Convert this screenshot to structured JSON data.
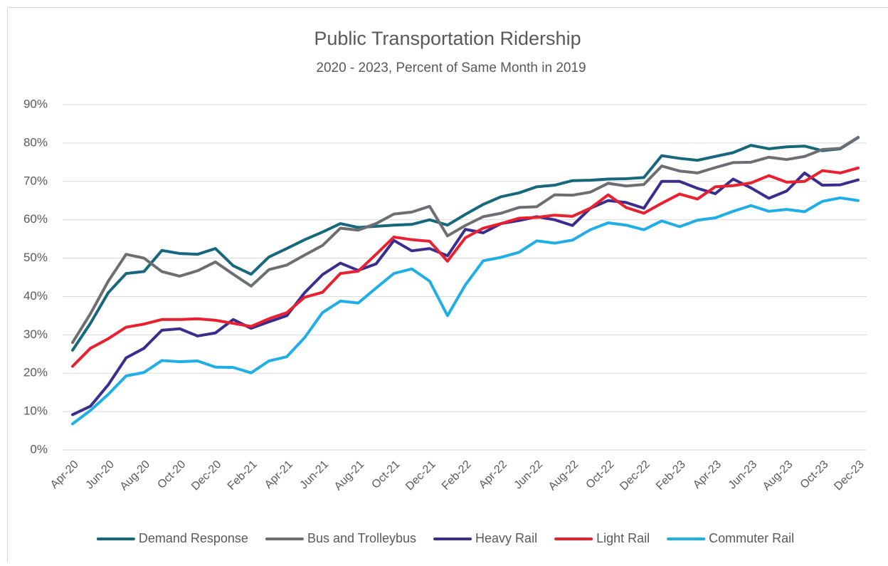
{
  "chart_data": {
    "type": "line",
    "title": "Public Transportation Ridership",
    "subtitle": "2020 - 2023, Percent of Same Month in 2019",
    "categories": [
      "Apr-20",
      null,
      "Jun-20",
      null,
      "Aug-20",
      null,
      "Oct-20",
      null,
      "Dec-20",
      null,
      "Feb-21",
      null,
      "Apr-21",
      null,
      "Jun-21",
      null,
      "Aug-21",
      null,
      "Oct-21",
      null,
      "Dec-21",
      null,
      "Feb-22",
      null,
      "Apr-22",
      null,
      "Jun-22",
      null,
      "Aug-22",
      null,
      "Oct-22",
      null,
      "Dec-22",
      null,
      "Feb-23",
      null,
      "Apr-23",
      null,
      "Jun-23",
      null,
      "Aug-23",
      null,
      "Oct-23",
      null,
      "Dec-23"
    ],
    "ylim": [
      0,
      90
    ],
    "yticks": [
      {
        "value": 0,
        "label": "0%"
      },
      {
        "value": 10,
        "label": "10%"
      },
      {
        "value": 20,
        "label": "20%"
      },
      {
        "value": 30,
        "label": "30%"
      },
      {
        "value": 40,
        "label": "40%"
      },
      {
        "value": 50,
        "label": "50%"
      },
      {
        "value": 60,
        "label": "60%"
      },
      {
        "value": 70,
        "label": "70%"
      },
      {
        "value": 80,
        "label": "80%"
      },
      {
        "value": 90,
        "label": "90%"
      }
    ],
    "grid": true,
    "legend": "bottom",
    "series": [
      {
        "name": "Demand Response",
        "color": "#17677d",
        "values": [
          26,
          33,
          41,
          46,
          46.5,
          52,
          51.2,
          51,
          52.5,
          48,
          45.8,
          50.3,
          52.5,
          54.8,
          56.8,
          59,
          58,
          58.3,
          58.6,
          58.8,
          60,
          58.6,
          61.4,
          64,
          66,
          67,
          68.6,
          69,
          70.2,
          70.3,
          70.6,
          70.7,
          71,
          76.7,
          76,
          75.5,
          76.5,
          77.5,
          79.4,
          78.5,
          79,
          79.2,
          78,
          78.5,
          81.4
        ]
      },
      {
        "name": "Bus and Trolleybus",
        "color": "#6d6e71",
        "values": [
          28,
          35.5,
          44,
          51,
          50,
          46.5,
          45.3,
          46.7,
          49,
          45.8,
          42.7,
          47,
          48.2,
          50.8,
          53.3,
          57.8,
          57.3,
          59,
          61.5,
          62,
          63.5,
          55.8,
          58.5,
          60.8,
          61.7,
          63.2,
          63.4,
          66.5,
          66.4,
          67.2,
          69.5,
          68.8,
          69.2,
          74,
          72.7,
          72.2,
          73.6,
          74.9,
          75,
          76.3,
          75.7,
          76.5,
          78.3,
          78.6,
          81.5
        ]
      },
      {
        "name": "Heavy Rail",
        "color": "#3b2d8e",
        "values": [
          9.2,
          11.4,
          17,
          24,
          26.5,
          31.2,
          31.6,
          29.7,
          30.5,
          34,
          31.7,
          33.4,
          35,
          41,
          45.7,
          48.7,
          46.8,
          48.5,
          54.6,
          51.9,
          52.5,
          50.6,
          57.5,
          56.6,
          59,
          59.8,
          60.8,
          60,
          58.5,
          63,
          65,
          64.5,
          63,
          70,
          70,
          68.2,
          66.8,
          70.6,
          68.3,
          65.6,
          67.5,
          72.2,
          69,
          69.1,
          70.4
        ]
      },
      {
        "name": "Light Rail",
        "color": "#e8202f",
        "values": [
          21.8,
          26.5,
          29,
          32,
          32.8,
          34,
          34,
          34.2,
          33.8,
          33,
          32.2,
          34.2,
          35.8,
          39.8,
          41.1,
          46,
          46.6,
          51,
          55.5,
          54.8,
          54.4,
          49.2,
          55.3,
          57.8,
          59,
          60.4,
          60.6,
          61.2,
          60.9,
          63,
          66.5,
          63.2,
          61.7,
          64.3,
          66.7,
          65.4,
          68.6,
          68.9,
          69.6,
          71.5,
          69.8,
          70,
          72.8,
          72.2,
          73.5
        ]
      },
      {
        "name": "Commuter Rail",
        "color": "#1faee6",
        "values": [
          6.8,
          10.3,
          14.5,
          19.3,
          20.2,
          23.3,
          23,
          23.2,
          21.6,
          21.5,
          20.1,
          23.2,
          24.3,
          29.3,
          35.8,
          38.8,
          38.3,
          42.2,
          46,
          47.2,
          44,
          35,
          43,
          49.3,
          50.2,
          51.5,
          54.5,
          53.9,
          54.7,
          57.4,
          59.2,
          58.6,
          57.4,
          59.7,
          58.2,
          59.9,
          60.5,
          62.2,
          63.7,
          62.2,
          62.7,
          62.1,
          64.8,
          65.7,
          65
        ]
      }
    ]
  }
}
